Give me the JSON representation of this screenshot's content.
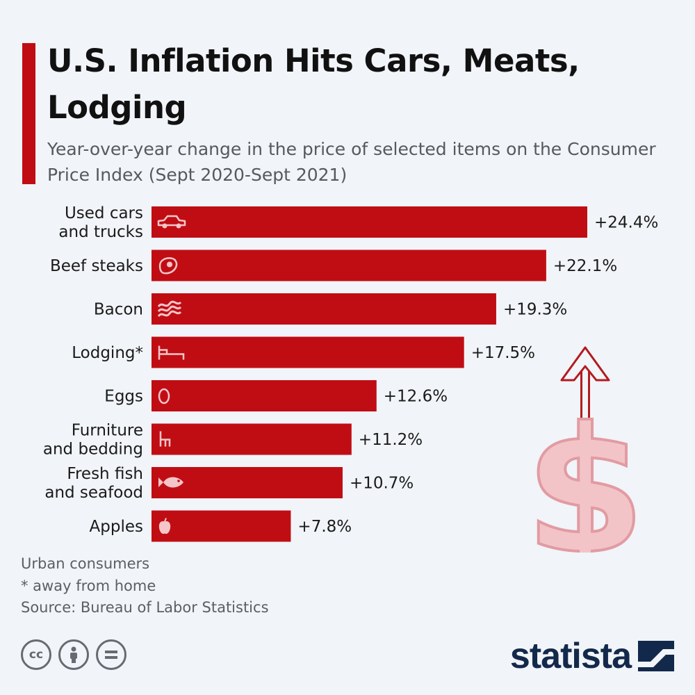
{
  "title": "U.S. Inflation Hits Cars, Meats, Lodging",
  "subtitle": "Year-over-year change in the price of selected items on the Consumer Price Index (Sept 2020-Sept 2021)",
  "colors": {
    "accent": "#c00d14",
    "bar": "#c00d14",
    "brand": "#13294b",
    "dollar": "#f2c4c8"
  },
  "chart_data": {
    "type": "bar",
    "orientation": "horizontal",
    "categories": [
      "Used cars\nand trucks",
      "Beef steaks",
      "Bacon",
      "Lodging*",
      "Eggs",
      "Furniture\nand bedding",
      "Fresh fish\nand seafood",
      "Apples"
    ],
    "values": [
      24.4,
      22.1,
      19.3,
      17.5,
      12.6,
      11.2,
      10.7,
      7.8
    ],
    "value_labels": [
      "+24.4%",
      "+22.1%",
      "+19.3%",
      "+17.5%",
      "+12.6%",
      "+11.2%",
      "+10.7%",
      "+7.8%"
    ],
    "icons": [
      "car-icon",
      "steak-icon",
      "bacon-icon",
      "bed-icon",
      "egg-icon",
      "chair-icon",
      "fish-icon",
      "apple-icon"
    ],
    "unit": "%",
    "grid": false,
    "xlim": [
      0,
      24.4
    ]
  },
  "footnotes": [
    "Urban consumers",
    "* away from home",
    "Source: Bureau of Labor Statistics"
  ],
  "license_icons": [
    "cc-icon",
    "by-icon",
    "nd-icon"
  ],
  "brand": {
    "name": "statista",
    "icon": "statista-logo-icon"
  },
  "decoration": {
    "icon": "dollar-arrow-icon"
  }
}
